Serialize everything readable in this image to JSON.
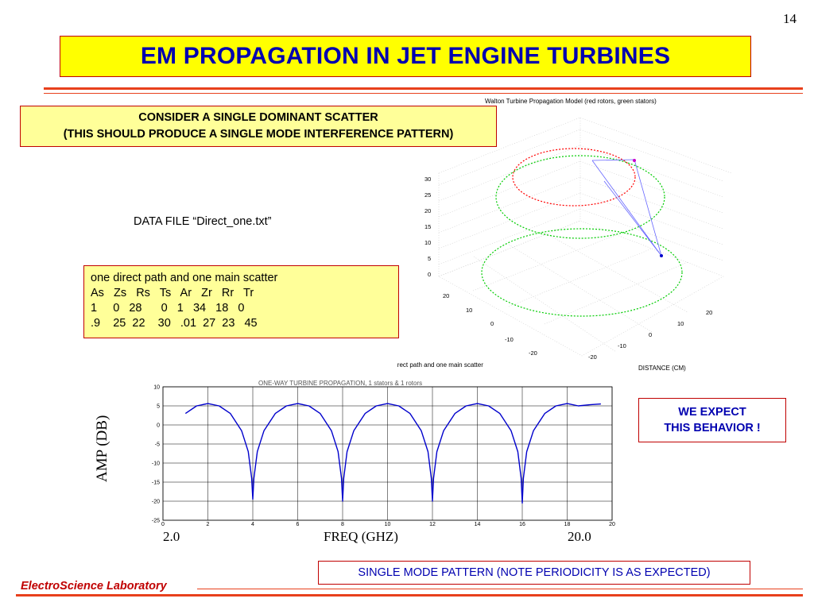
{
  "page_number": "14",
  "title": "EM PROPAGATION IN JET ENGINE TURBINES",
  "consider_box": {
    "line1": "CONSIDER A SINGLE DOMINANT SCATTER",
    "line2": "(THIS SHOULD PRODUCE A SINGLE MODE INTERFERENCE PATTERN)"
  },
  "data_file": "DATA FILE “Direct_one.txt”",
  "params_box": {
    "line1": "one direct path and one main scatter",
    "line2": "As   Zs   Rs   Ts   Ar   Zr   Rr   Tr",
    "line3": "1     0   28      0   1   34   18   0",
    "line4": ".9    25  22    30   .01  27  23   45"
  },
  "model_plot": {
    "title": "Walton Turbine Propagation Model (red rotors, green stators)",
    "z_ticks": [
      "30",
      "25",
      "20",
      "15",
      "10",
      "5",
      "0"
    ],
    "y_ticks": [
      "20",
      "10",
      "0",
      "-10",
      "-20"
    ],
    "x_ticks": [
      "20",
      "10",
      "0",
      "-10",
      "-20"
    ],
    "caption": "one direct path and one main scatter",
    "axis_label": "DISTANCE (CM)",
    "colors": {
      "rotor": "#ff0000",
      "stator": "#00cc00",
      "path": "#6666ff"
    }
  },
  "chart_data": {
    "type": "line",
    "title": "ONE-WAY TURBINE PROPAGATION, 1 stators & 1 rotors",
    "ylabel": "AMP (DB)",
    "xlabel": "FREQ (GHZ)",
    "xlim": [
      0,
      20
    ],
    "ylim": [
      -25,
      10
    ],
    "y_ticks": [
      "10",
      "5",
      "0",
      "-5",
      "-10",
      "-15",
      "-20",
      "-25"
    ],
    "x_ticks": [
      "0",
      "2",
      "4",
      "6",
      "8",
      "10",
      "12",
      "14",
      "16",
      "18",
      "20"
    ],
    "x_start_label": "2.0",
    "x_end_label": "20.0",
    "series": [
      {
        "color": "#0000cc",
        "x": [
          1.0,
          1.5,
          2.0,
          2.5,
          3.0,
          3.5,
          3.8,
          3.95,
          4.0,
          4.05,
          4.2,
          4.5,
          5.0,
          5.5,
          6.0,
          6.5,
          7.0,
          7.5,
          7.8,
          7.95,
          8.0,
          8.05,
          8.2,
          8.5,
          9.0,
          9.5,
          10.0,
          10.5,
          11.0,
          11.5,
          11.8,
          11.95,
          12.0,
          12.05,
          12.2,
          12.5,
          13.0,
          13.5,
          14.0,
          14.5,
          15.0,
          15.5,
          15.8,
          15.95,
          16.0,
          16.05,
          16.2,
          16.5,
          17.0,
          17.5,
          18.0,
          18.5,
          19.0,
          19.5
        ],
        "y": [
          3.0,
          5.0,
          5.6,
          5.0,
          3.0,
          -1.5,
          -7.0,
          -14.0,
          -19.5,
          -14.0,
          -7.0,
          -1.5,
          3.0,
          5.0,
          5.6,
          5.0,
          3.0,
          -1.5,
          -7.0,
          -14.0,
          -20.0,
          -14.0,
          -7.0,
          -1.5,
          3.0,
          5.0,
          5.6,
          5.0,
          3.0,
          -1.5,
          -7.0,
          -14.0,
          -20.0,
          -14.0,
          -7.0,
          -1.5,
          3.0,
          5.0,
          5.6,
          5.0,
          3.0,
          -1.5,
          -7.0,
          -14.0,
          -20.5,
          -14.0,
          -7.0,
          -1.5,
          3.0,
          5.0,
          5.6,
          5.0,
          5.3,
          5.5
        ]
      }
    ]
  },
  "we_expect": {
    "line1": "WE EXPECT",
    "line2": "THIS BEHAVIOR !"
  },
  "single_mode_note": "SINGLE MODE PATTERN (NOTE PERIODICITY IS AS EXPECTED)",
  "footer_lab": "ElectroScience Laboratory"
}
